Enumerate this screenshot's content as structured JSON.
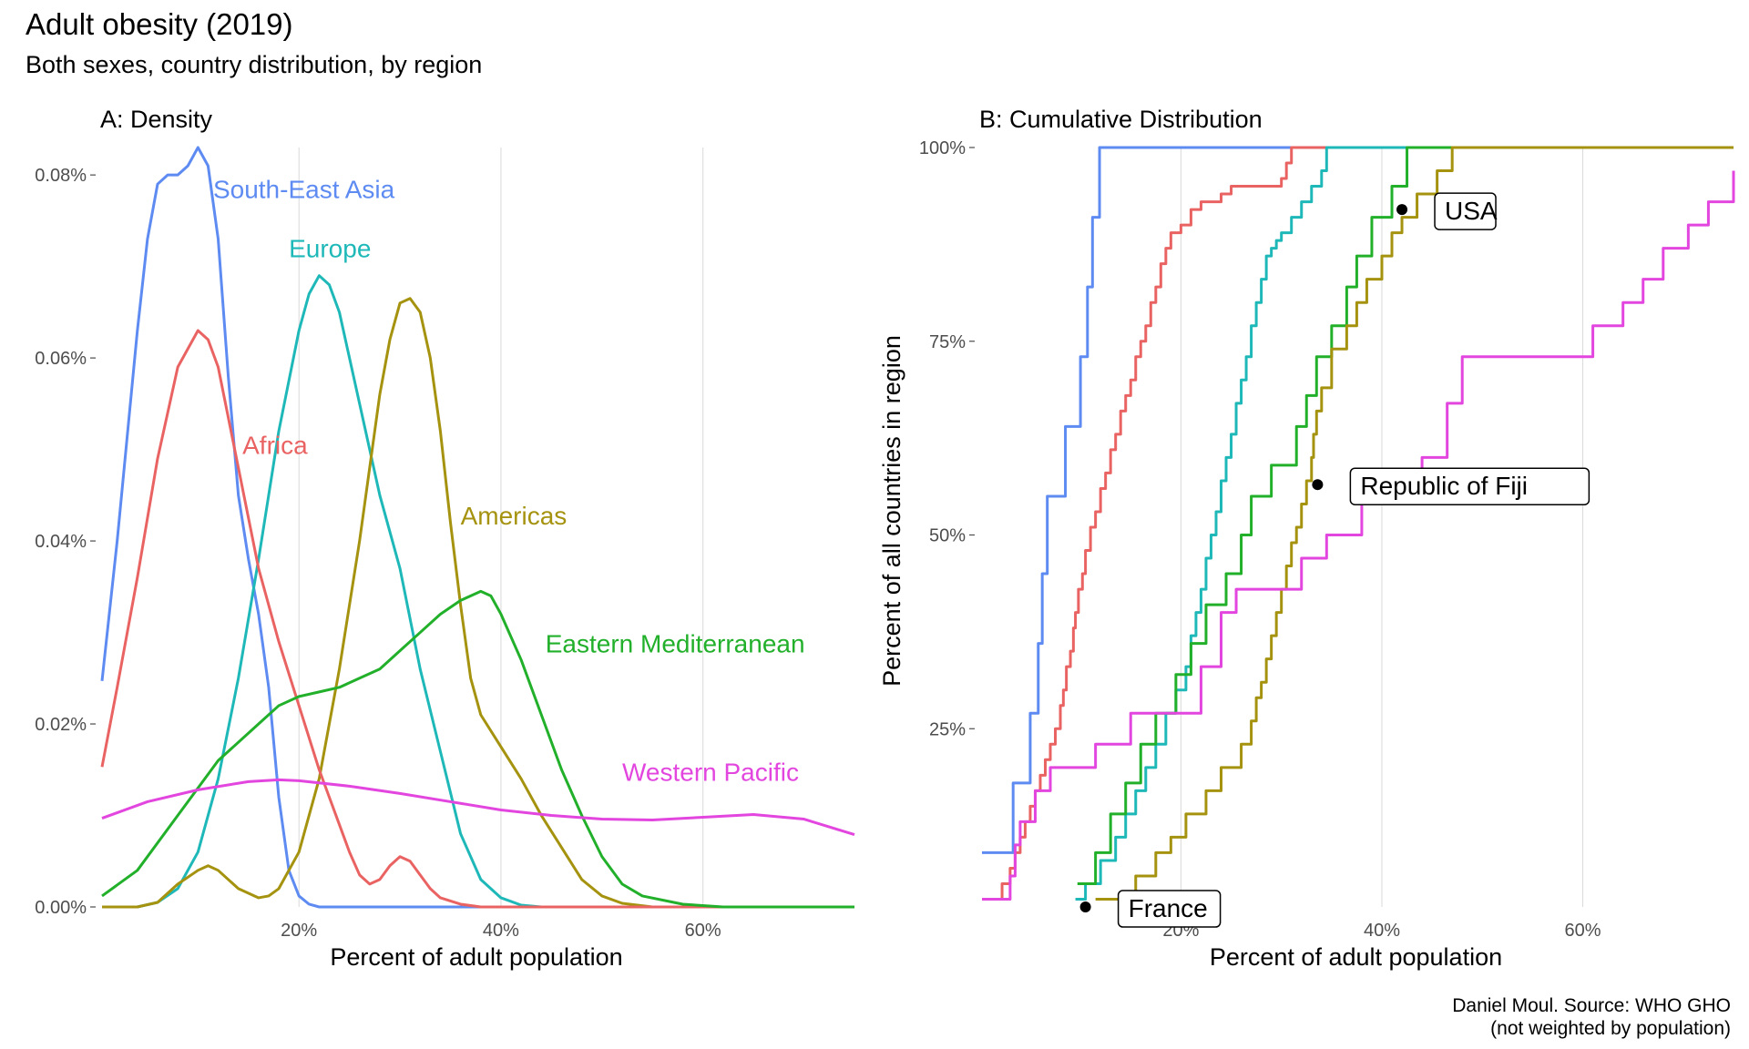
{
  "title": "Adult obesity (2019)",
  "subtitle": "Both sexes, country distribution, by region",
  "caption_line1": "Daniel Moul. Source: WHO GHO",
  "caption_line2": "(not weighted by population)",
  "chart_data": [
    {
      "type": "line",
      "subtype": "density",
      "panel_title": "A: Density",
      "xlabel": "Percent of adult population",
      "ylabel": "",
      "xlim": [
        0.5,
        75
      ],
      "ylim": [
        0,
        0.083
      ],
      "x_ticks": [
        20,
        40,
        60
      ],
      "x_tick_labels": [
        "20%",
        "40%",
        "60%"
      ],
      "y_ticks": [
        0,
        0.02,
        0.04,
        0.06,
        0.08
      ],
      "y_tick_labels": [
        "0.00%",
        "0.02%",
        "0.04%",
        "0.06%",
        "0.08%"
      ],
      "grid": true,
      "legend": "inline labels",
      "series": [
        {
          "name": "South-East Asia",
          "color": "#5E8BF2",
          "label_x": 11.5,
          "label_y": 0.0775,
          "x": [
            0.5,
            2,
            4,
            5,
            6,
            7,
            8,
            9,
            10,
            11,
            12,
            13,
            14,
            15,
            16,
            17,
            18,
            19,
            20,
            21,
            22,
            24,
            26,
            30,
            40,
            75
          ],
          "y": [
            0.0247,
            0.04,
            0.063,
            0.073,
            0.079,
            0.08,
            0.08,
            0.081,
            0.083,
            0.081,
            0.073,
            0.058,
            0.045,
            0.038,
            0.032,
            0.024,
            0.012,
            0.004,
            0.0012,
            0.0003,
            0,
            0,
            0,
            0,
            0,
            0
          ]
        },
        {
          "name": "Europe",
          "color": "#1FB8B8",
          "label_x": 19,
          "label_y": 0.071,
          "x": [
            0.5,
            4,
            6,
            8,
            10,
            12,
            14,
            16,
            18,
            20,
            21,
            22,
            23,
            24,
            25,
            26,
            28,
            30,
            32,
            34,
            36,
            38,
            40,
            42,
            44,
            75
          ],
          "y": [
            0,
            0,
            0.0005,
            0.002,
            0.006,
            0.014,
            0.025,
            0.038,
            0.052,
            0.063,
            0.067,
            0.069,
            0.068,
            0.065,
            0.06,
            0.055,
            0.045,
            0.037,
            0.026,
            0.017,
            0.008,
            0.003,
            0.001,
            0.0002,
            0,
            0
          ]
        },
        {
          "name": "Americas",
          "color": "#A59310",
          "label_x": 36,
          "label_y": 0.0418,
          "x": [
            0.5,
            4,
            6,
            8,
            10,
            11,
            12,
            14,
            16,
            17,
            18,
            20,
            22,
            24,
            26,
            28,
            29,
            30,
            31,
            32,
            33,
            34,
            35,
            36,
            37,
            38,
            40,
            42,
            44,
            46,
            48,
            50,
            52,
            55,
            60,
            75
          ],
          "y": [
            0,
            0,
            0.0005,
            0.0025,
            0.004,
            0.0045,
            0.004,
            0.002,
            0.001,
            0.0012,
            0.002,
            0.006,
            0.014,
            0.026,
            0.04,
            0.056,
            0.062,
            0.066,
            0.0665,
            0.065,
            0.06,
            0.052,
            0.042,
            0.033,
            0.025,
            0.021,
            0.0175,
            0.014,
            0.01,
            0.0065,
            0.003,
            0.0012,
            0.0004,
            0,
            0,
            0
          ]
        },
        {
          "name": "Africa",
          "color": "#EA6363",
          "label_x": 14.4,
          "label_y": 0.0495,
          "x": [
            0.5,
            2,
            4,
            6,
            8,
            10,
            11,
            12,
            14,
            16,
            18,
            20,
            22,
            24,
            25,
            26,
            27,
            28,
            29,
            30,
            31,
            32,
            33,
            34,
            36,
            38,
            40,
            75
          ],
          "y": [
            0.0153,
            0.024,
            0.036,
            0.049,
            0.059,
            0.063,
            0.062,
            0.059,
            0.048,
            0.037,
            0.029,
            0.022,
            0.015,
            0.009,
            0.006,
            0.0035,
            0.0025,
            0.003,
            0.0045,
            0.0055,
            0.005,
            0.0035,
            0.002,
            0.001,
            0.0003,
            0,
            0,
            0
          ]
        },
        {
          "name": "Eastern Mediterranean",
          "color": "#22B02B",
          "label_x": 44.4,
          "label_y": 0.0278,
          "x": [
            0.5,
            4,
            8,
            12,
            16,
            18,
            20,
            22,
            24,
            26,
            28,
            30,
            32,
            34,
            36,
            37,
            38,
            39,
            40,
            42,
            44,
            46,
            48,
            50,
            52,
            54,
            58,
            62,
            75
          ],
          "y": [
            0.0012,
            0.004,
            0.01,
            0.016,
            0.02,
            0.022,
            0.023,
            0.0235,
            0.024,
            0.025,
            0.026,
            0.028,
            0.03,
            0.032,
            0.0335,
            0.034,
            0.0345,
            0.034,
            0.032,
            0.027,
            0.021,
            0.015,
            0.01,
            0.0055,
            0.0025,
            0.0012,
            0.0003,
            0,
            0
          ]
        },
        {
          "name": "Western Pacific",
          "color": "#E246DF",
          "label_x": 52,
          "label_y": 0.0138,
          "x": [
            0.5,
            5,
            10,
            15,
            18,
            20,
            25,
            30,
            35,
            40,
            45,
            50,
            55,
            60,
            65,
            70,
            75
          ],
          "y": [
            0.0097,
            0.0115,
            0.0128,
            0.0137,
            0.0139,
            0.0138,
            0.0132,
            0.0124,
            0.0115,
            0.0106,
            0.01,
            0.0096,
            0.0095,
            0.0098,
            0.0101,
            0.0096,
            0.0079
          ]
        }
      ]
    },
    {
      "type": "line",
      "subtype": "step (empirical cumulative distribution)",
      "panel_title": "B: Cumulative Distribution",
      "xlabel": "Percent of adult population",
      "ylabel": "Percent of all countries in region",
      "xlim": [
        0.2,
        75
      ],
      "ylim": [
        0.02,
        1.0
      ],
      "x_ticks": [
        20,
        40,
        60
      ],
      "x_tick_labels": [
        "20%",
        "40%",
        "60%"
      ],
      "y_ticks": [
        0.25,
        0.5,
        0.75,
        1.0
      ],
      "y_tick_labels": [
        "25%",
        "50%",
        "75%",
        "100%"
      ],
      "grid": true,
      "series": [
        {
          "name": "South-East Asia",
          "color": "#5E8BF2",
          "x": [
            0.2,
            3.3,
            5.0,
            5.8,
            6.2,
            6.4,
            6.7,
            8.5,
            10.0,
            10.7,
            11.2,
            11.9,
            13.2,
            16.5,
            17.2
          ],
          "y": [
            0.09,
            0.18,
            0.27,
            0.36,
            0.45,
            0.45,
            0.55,
            0.64,
            0.73,
            0.82,
            0.91,
            1.0,
            1.0,
            1.0,
            1.0
          ]
        },
        {
          "name": "Africa",
          "color": "#EA6363",
          "x": [
            0.2,
            2.2,
            3.0,
            3.5,
            4.0,
            4.5,
            5.0,
            5.5,
            6.0,
            6.5,
            7.0,
            7.5,
            8.0,
            8.3,
            8.6,
            9.0,
            9.3,
            9.5,
            9.8,
            10.2,
            10.5,
            11.0,
            11.5,
            12.0,
            12.5,
            13.0,
            13.5,
            14.0,
            14.5,
            15.0,
            15.5,
            16.0,
            16.5,
            17.0,
            17.5,
            18.0,
            18.5,
            19.0,
            20.0,
            21.0,
            22.0,
            23.0,
            24.0,
            25.0,
            30.0,
            30.5,
            31.0
          ],
          "y": [
            0.03,
            0.05,
            0.07,
            0.09,
            0.11,
            0.13,
            0.15,
            0.17,
            0.19,
            0.21,
            0.23,
            0.25,
            0.28,
            0.3,
            0.33,
            0.35,
            0.38,
            0.4,
            0.43,
            0.45,
            0.48,
            0.51,
            0.53,
            0.56,
            0.58,
            0.61,
            0.63,
            0.66,
            0.68,
            0.7,
            0.73,
            0.75,
            0.77,
            0.8,
            0.82,
            0.85,
            0.87,
            0.89,
            0.9,
            0.92,
            0.93,
            0.93,
            0.94,
            0.95,
            0.96,
            0.98,
            1.0
          ]
        },
        {
          "name": "Europe",
          "color": "#1FB8B8",
          "x": [
            9.5,
            10.5,
            12.0,
            13.5,
            14.5,
            15.5,
            16.5,
            17.5,
            18.5,
            19.5,
            20.5,
            21.0,
            21.5,
            22.0,
            22.5,
            23.0,
            23.5,
            24.0,
            24.5,
            25.0,
            25.5,
            26.0,
            26.5,
            27.0,
            27.5,
            28.0,
            28.5,
            29.0,
            29.5,
            30.0,
            31.0,
            32.0,
            33.0,
            34.0,
            34.5
          ],
          "y": [
            0.03,
            0.05,
            0.08,
            0.11,
            0.14,
            0.17,
            0.2,
            0.23,
            0.27,
            0.3,
            0.33,
            0.37,
            0.4,
            0.43,
            0.47,
            0.5,
            0.53,
            0.57,
            0.6,
            0.63,
            0.67,
            0.7,
            0.73,
            0.77,
            0.8,
            0.83,
            0.86,
            0.87,
            0.88,
            0.89,
            0.91,
            0.93,
            0.95,
            0.97,
            1.0
          ]
        },
        {
          "name": "Eastern Mediterranean",
          "color": "#22B02B",
          "x": [
            9.7,
            11.5,
            13.0,
            14.5,
            16.0,
            17.5,
            19.5,
            21.0,
            22.5,
            24.5,
            26.0,
            27.0,
            29.0,
            31.5,
            32.5,
            33.5,
            35.0,
            36.5,
            37.5,
            39.0,
            41.0,
            42.5,
            44.0,
            46.0
          ],
          "y": [
            0.05,
            0.09,
            0.14,
            0.18,
            0.23,
            0.27,
            0.32,
            0.36,
            0.41,
            0.45,
            0.5,
            0.55,
            0.59,
            0.64,
            0.68,
            0.73,
            0.77,
            0.82,
            0.86,
            0.91,
            0.95,
            1.0,
            1.0,
            1.0
          ]
        },
        {
          "name": "Americas",
          "color": "#A59310",
          "x": [
            11.5,
            13.0,
            15.5,
            17.5,
            19.0,
            20.5,
            22.5,
            24.0,
            26.0,
            27.0,
            27.5,
            28.0,
            28.5,
            29.0,
            29.5,
            30.0,
            30.5,
            31.0,
            31.5,
            32.0,
            32.5,
            33.0,
            33.2,
            33.5,
            34.0,
            35.0,
            36.5,
            37.5,
            38.5,
            40.0,
            41.0,
            42.0,
            43.5,
            45.5,
            47.0
          ],
          "y": [
            0.03,
            0.03,
            0.06,
            0.09,
            0.11,
            0.14,
            0.17,
            0.2,
            0.23,
            0.26,
            0.29,
            0.31,
            0.34,
            0.37,
            0.4,
            0.43,
            0.46,
            0.49,
            0.51,
            0.54,
            0.57,
            0.6,
            0.63,
            0.66,
            0.69,
            0.74,
            0.77,
            0.8,
            0.83,
            0.86,
            0.89,
            0.91,
            0.94,
            0.97,
            1.0
          ]
        },
        {
          "name": "Western Pacific",
          "color": "#E246DF",
          "x": [
            0.2,
            3.0,
            3.5,
            4.0,
            5.5,
            7.0,
            11.5,
            15.0,
            22.0,
            24.0,
            25.5,
            28.0,
            32.0,
            34.5,
            38.0,
            44.0,
            46.5,
            48.0,
            55.0,
            61.0,
            64.0,
            66.0,
            68.0,
            70.5,
            72.5,
            75.0
          ],
          "y": [
            0.03,
            0.06,
            0.1,
            0.13,
            0.17,
            0.2,
            0.23,
            0.27,
            0.33,
            0.4,
            0.43,
            0.43,
            0.47,
            0.5,
            0.57,
            0.6,
            0.67,
            0.73,
            0.73,
            0.77,
            0.8,
            0.83,
            0.87,
            0.9,
            0.93,
            0.97
          ]
        }
      ],
      "annotations": [
        {
          "label": "USA",
          "x": 42.0,
          "y": 0.92
        },
        {
          "label": "Republic of Fiji",
          "x": 33.6,
          "y": 0.565
        },
        {
          "label": "France",
          "x": 10.5,
          "y": 0.02
        }
      ]
    }
  ]
}
